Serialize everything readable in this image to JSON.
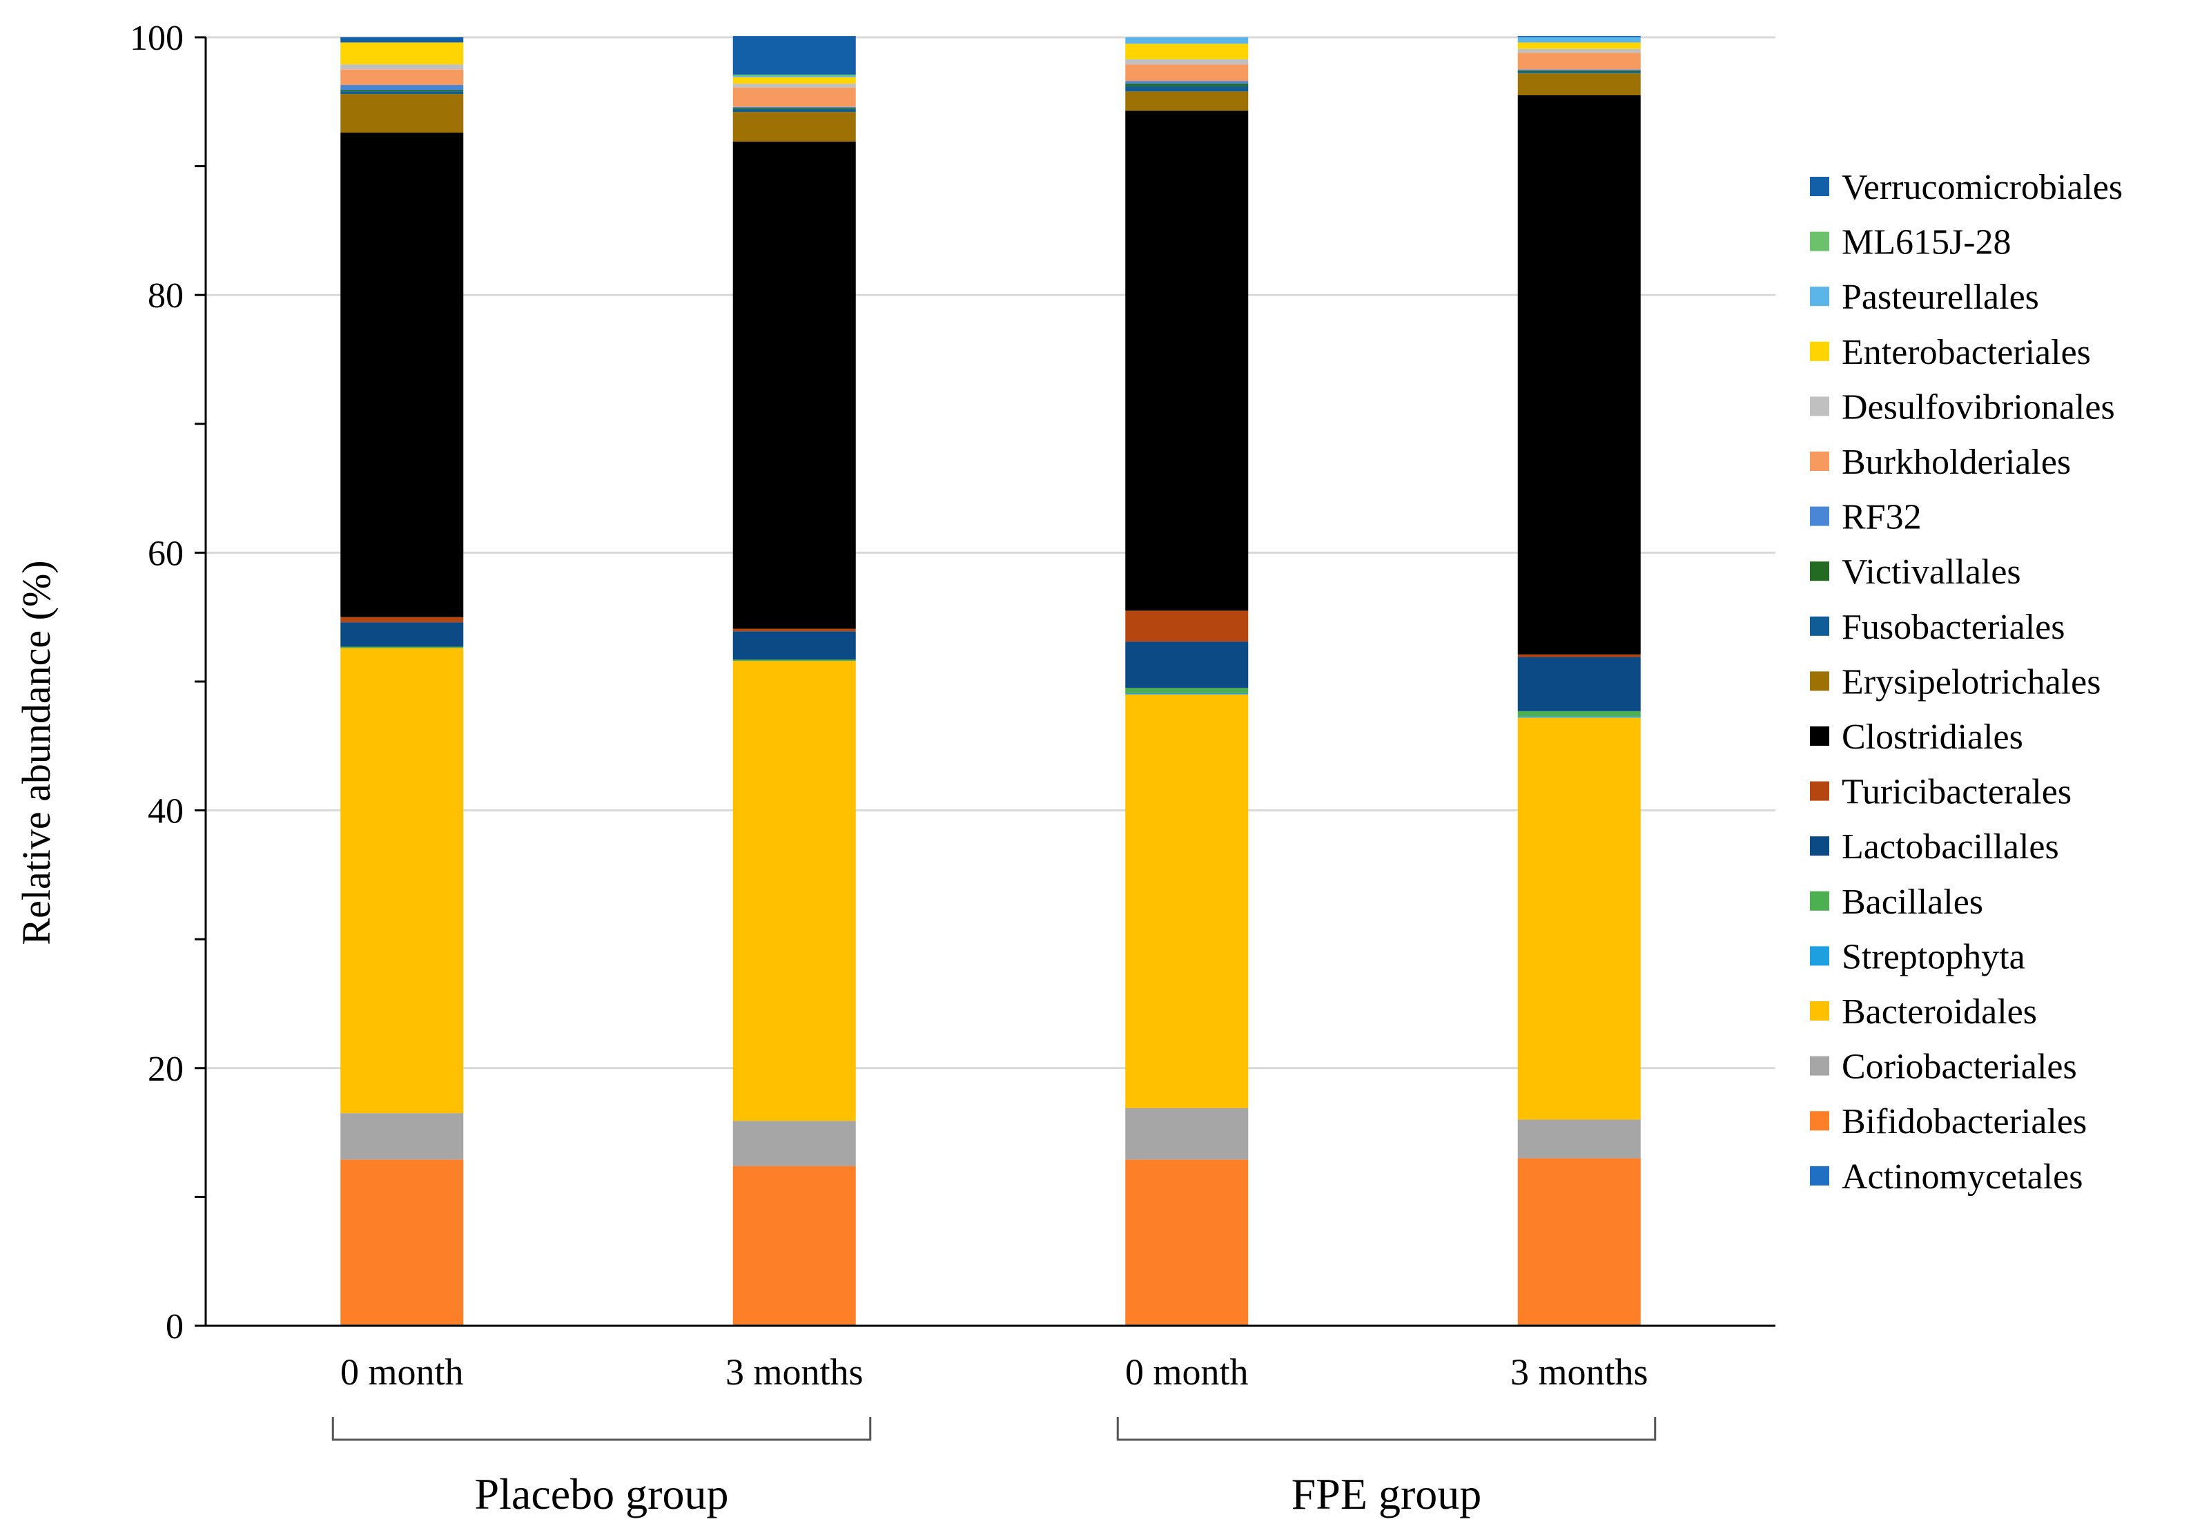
{
  "chart_data": {
    "type": "bar",
    "stacked": true,
    "ylabel": "Relative abundance (%)",
    "ylim": [
      0,
      100
    ],
    "yticks": [
      0,
      20,
      40,
      60,
      80,
      100
    ],
    "grid": true,
    "legend_position": "right",
    "categories": [
      "0 month",
      "3 months",
      "0 month",
      "3 months"
    ],
    "groups": [
      {
        "label": "Placebo group",
        "categories": [
          0,
          1
        ]
      },
      {
        "label": "FPE group",
        "categories": [
          2,
          3
        ]
      }
    ],
    "series": [
      {
        "name": "Actinomycetales",
        "color": "#1F6FC5",
        "values": [
          0.1,
          0.1,
          0.1,
          0.1
        ]
      },
      {
        "name": "Bifidobacteriales",
        "color": "#FD7F28",
        "values": [
          12.8,
          12.3,
          12.8,
          12.9
        ]
      },
      {
        "name": "Coriobacteriales",
        "color": "#A6A6A6",
        "values": [
          3.6,
          3.5,
          4.0,
          3.0
        ]
      },
      {
        "name": "Bacteroidales",
        "color": "#FFC000",
        "values": [
          36.1,
          35.7,
          32.1,
          31.2
        ]
      },
      {
        "name": "Streptophyta",
        "color": "#1E9FE0",
        "values": [
          0.0,
          0.0,
          0.1,
          0.1
        ]
      },
      {
        "name": "Bacillales",
        "color": "#4CAF50",
        "values": [
          0.1,
          0.1,
          0.4,
          0.4
        ]
      },
      {
        "name": "Lactobacillales",
        "color": "#0C4A86",
        "values": [
          1.9,
          2.2,
          3.6,
          4.2
        ]
      },
      {
        "name": "Turicibacterales",
        "color": "#B5460F",
        "values": [
          0.4,
          0.2,
          2.4,
          0.2
        ]
      },
      {
        "name": "Clostridiales",
        "color": "#000000",
        "values": [
          37.6,
          37.8,
          38.8,
          43.4
        ]
      },
      {
        "name": "Erysipelotrichales",
        "color": "#9E7105",
        "values": [
          3.0,
          2.3,
          1.5,
          1.7
        ]
      },
      {
        "name": "Fusobacteriales",
        "color": "#0F5C96",
        "values": [
          0.2,
          0.2,
          0.4,
          0.1
        ]
      },
      {
        "name": "Victivallales",
        "color": "#236B23",
        "values": [
          0.1,
          0.1,
          0.2,
          0.1
        ]
      },
      {
        "name": "RF32",
        "color": "#4A86D6",
        "values": [
          0.4,
          0.1,
          0.2,
          0.1
        ]
      },
      {
        "name": "Burkholderiales",
        "color": "#F79A5F",
        "values": [
          1.2,
          1.5,
          1.3,
          1.3
        ]
      },
      {
        "name": "Desulfovibrionales",
        "color": "#C0C0C0",
        "values": [
          0.4,
          0.3,
          0.4,
          0.3
        ]
      },
      {
        "name": "Enterobacteriales",
        "color": "#FFD400",
        "values": [
          1.7,
          0.5,
          1.2,
          0.5
        ]
      },
      {
        "name": "Pasteurellales",
        "color": "#5BB5E8",
        "values": [
          0.0,
          0.1,
          0.5,
          0.4
        ]
      },
      {
        "name": "ML615J-28",
        "color": "#6CC26C",
        "values": [
          0.0,
          0.1,
          0.0,
          0.0
        ]
      },
      {
        "name": "Verrucomicrobiales",
        "color": "#1460A8",
        "values": [
          0.4,
          3.0,
          0.0,
          0.1
        ]
      }
    ]
  }
}
